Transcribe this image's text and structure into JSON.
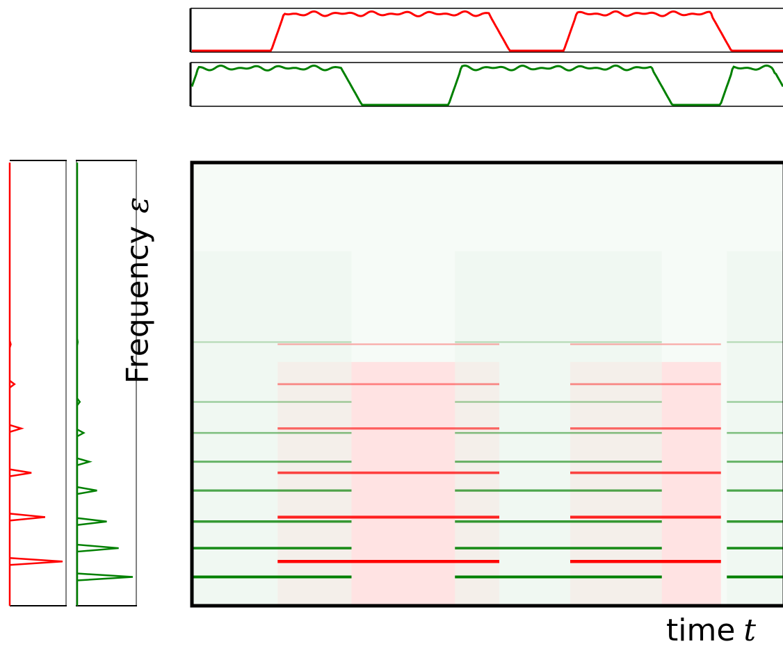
{
  "labels": {
    "frequency_word": "Frequency",
    "frequency_symbol": "ε",
    "time_word": "time",
    "time_symbol": "t"
  },
  "colors": {
    "source_red": "#ff0000",
    "source_green": "#008000",
    "frame": "#000000"
  },
  "activations": {
    "red_on_intervals": [
      [
        0.145,
        0.52
      ],
      [
        0.64,
        0.895
      ]
    ],
    "green_on_intervals": [
      [
        0.0,
        0.27
      ],
      [
        0.445,
        0.795
      ],
      [
        0.905,
        1.0
      ]
    ]
  },
  "spectrogram": {
    "red_harmonics": [
      0.41,
      0.5,
      0.6,
      0.7,
      0.8,
      0.9
    ],
    "green_harmonics": [
      0.405,
      0.54,
      0.61,
      0.675,
      0.74,
      0.81,
      0.87,
      0.935
    ]
  }
}
